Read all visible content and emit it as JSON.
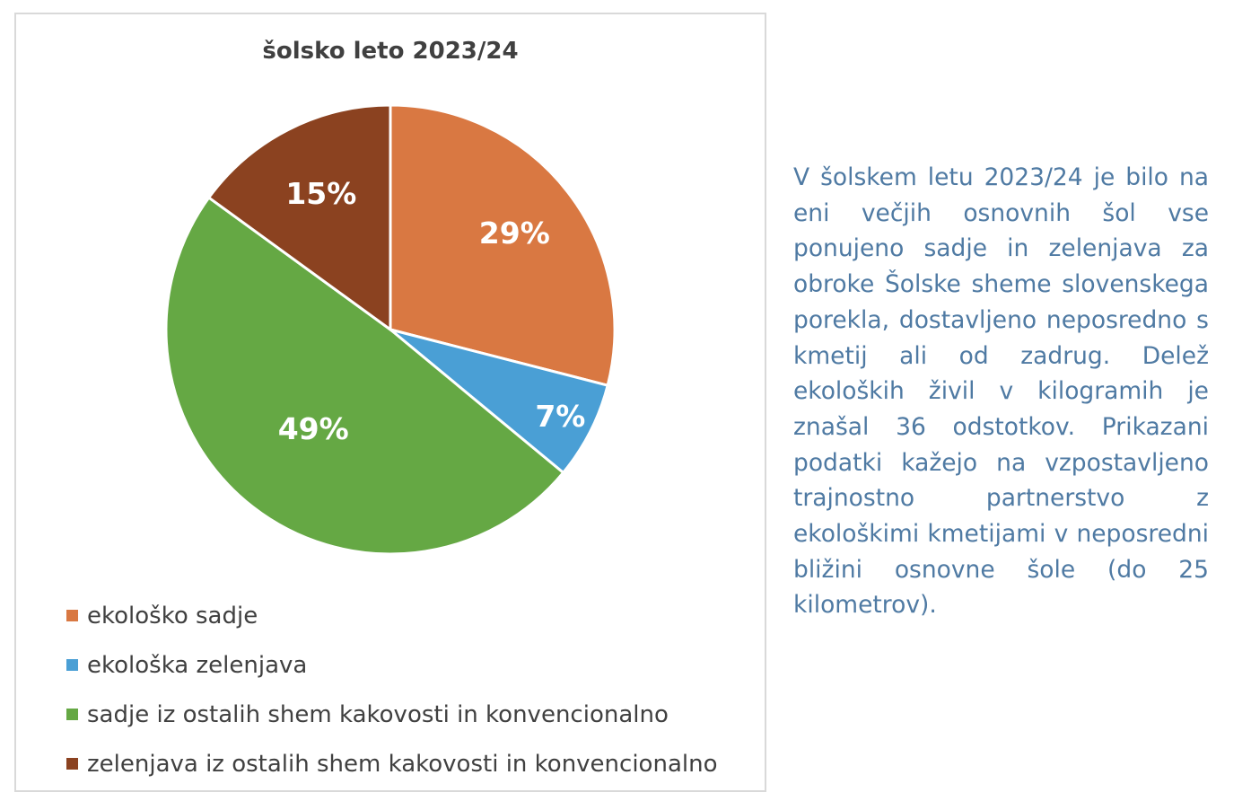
{
  "chart_data": {
    "type": "pie",
    "title": "šolsko leto 2023/24",
    "categories": [
      "ekološko sadje",
      "ekološka zelenjava",
      "sadje iz ostalih shem kakovosti in konvencionalno",
      "zelenjava iz ostalih shem kakovosti in konvencionalno"
    ],
    "values": [
      29,
      7,
      49,
      15
    ],
    "labels": [
      "29%",
      "7%",
      "49%",
      "15%"
    ],
    "colors": [
      "#d97842",
      "#4a9fd5",
      "#65a844",
      "#8b4220"
    ],
    "legend_position": "bottom"
  },
  "description": "V šolskem letu 2023/24 je bilo na eni večjih osnovnih šol vse ponujeno sadje in zelenjava za obroke Šolske sheme slovenskega porekla, dostavljeno neposredno s kmetij ali od zadrug. Delež ekoloških živil v kilogramih je znašal 36 odstotkov. Prikazani podatki kažejo na vzpostavljeno trajnostno partnerstvo z ekološkimi kmetijami v neposredni bližini osnovne šole (do 25 kilometrov)."
}
